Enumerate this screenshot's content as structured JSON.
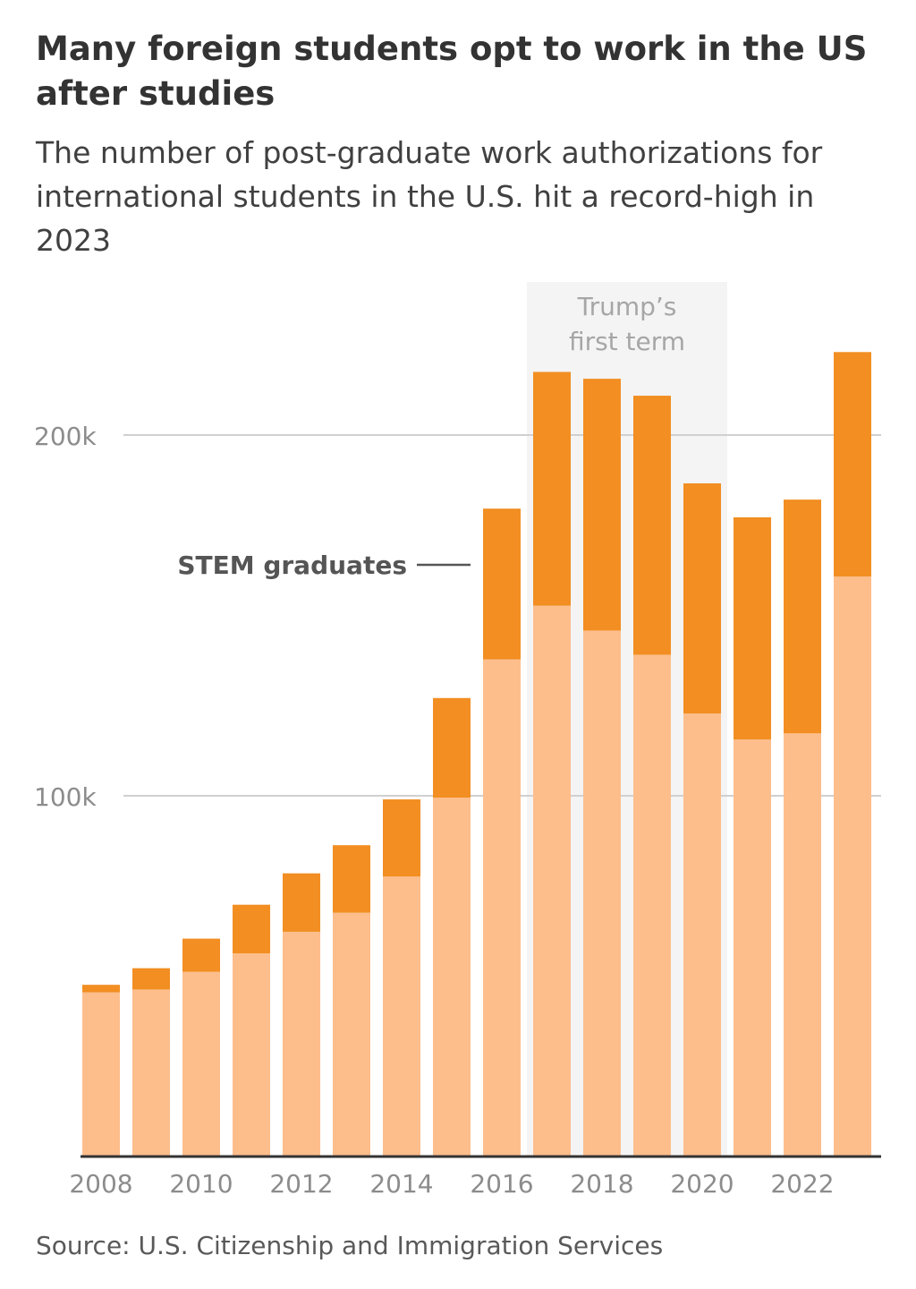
{
  "header": {
    "title": "Many foreign students opt to work in the US after studies",
    "subtitle": "The number of post-graduate work authorizations for international students in the U.S. hit a record-high in 2023"
  },
  "footer": {
    "source": "Source: U.S. Citizenship and Immigration Services"
  },
  "chart_data": {
    "type": "bar",
    "stacked": true,
    "categories": [
      "2008",
      "2009",
      "2010",
      "2011",
      "2012",
      "2013",
      "2014",
      "2015",
      "2016",
      "2017",
      "2018",
      "2019",
      "2020",
      "2021",
      "2022",
      "2023"
    ],
    "x_tick_labels": [
      "2008",
      "2010",
      "2012",
      "2014",
      "2016",
      "2018",
      "2020",
      "2022"
    ],
    "series": [
      {
        "values": [
          45500,
          46300,
          51200,
          56300,
          62300,
          67600,
          77600,
          99500,
          137800,
          152700,
          145800,
          139100,
          122800,
          115600,
          117300,
          160800
        ],
        "color": "#fdbe8c"
      },
      {
        "name": "STEM graduates",
        "values": [
          2100,
          5900,
          9200,
          13500,
          16200,
          18700,
          21400,
          27600,
          41800,
          64800,
          69800,
          71800,
          63800,
          61600,
          64800,
          62200
        ],
        "color": "#f28e22"
      }
    ],
    "y_ticks": [
      100000,
      200000
    ],
    "y_tick_labels": [
      "100k",
      "200k"
    ],
    "ylim": [
      0,
      230000
    ],
    "grid": true,
    "annotations": [
      {
        "type": "shaded_span",
        "from": "2017",
        "to": "2020",
        "label_lines": [
          "Trump’s",
          "first term"
        ]
      }
    ],
    "xlabel": "",
    "ylabel": ""
  }
}
